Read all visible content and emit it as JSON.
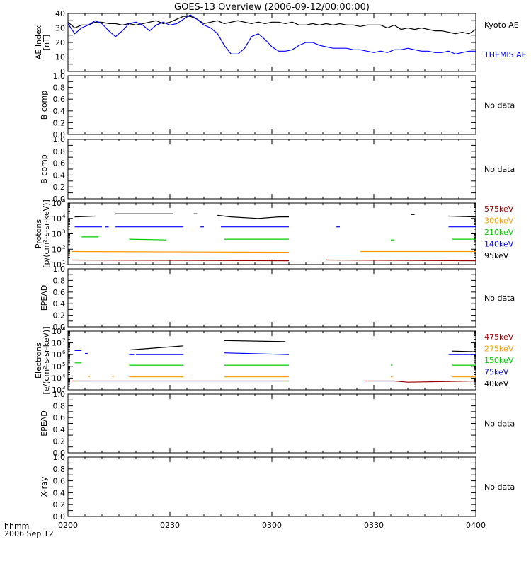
{
  "title": "GOES-13 Overview (2006-09-12/00:00:00)",
  "time_axis": {
    "corner_line1": "hhmm",
    "corner_line2": "2006 Sep 12",
    "ticks": [
      {
        "t": 0,
        "label": "0200"
      },
      {
        "t": 30,
        "label": "0230"
      },
      {
        "t": 60,
        "label": "0300"
      },
      {
        "t": 90,
        "label": "0330"
      },
      {
        "t": 120,
        "label": "0400"
      }
    ],
    "minor_step": 5,
    "range": [
      0,
      120
    ]
  },
  "colors": {
    "black": "#000000",
    "blue": "#0000ff",
    "green": "#00cc00",
    "orange": "#ff9900",
    "darkred": "#990000"
  },
  "chart_data": [
    {
      "type": "line",
      "id": "ae",
      "ylabel": [
        "AE Index",
        "[nT]"
      ],
      "ylim": [
        0,
        40
      ],
      "scale": "linear",
      "yticks": [
        0,
        5,
        10,
        15,
        20,
        25,
        30,
        35,
        40
      ],
      "yticklabels": [
        "0",
        "",
        "10",
        "",
        "20",
        "",
        "30",
        "",
        "40"
      ],
      "series": [
        {
          "name": "Kyoto AE",
          "color": "#000000",
          "x": [
            0,
            2,
            4,
            6,
            8,
            10,
            12,
            14,
            16,
            18,
            20,
            22,
            24,
            26,
            28,
            30,
            32,
            34,
            36,
            38,
            40,
            42,
            44,
            46,
            48,
            50,
            52,
            54,
            56,
            58,
            60,
            62,
            64,
            66,
            68,
            70,
            72,
            74,
            76,
            78,
            80,
            82,
            84,
            86,
            88,
            90,
            92,
            94,
            96,
            98,
            100,
            102,
            104,
            106,
            108,
            110,
            112,
            114,
            116,
            118,
            120
          ],
          "y": [
            34,
            30,
            32,
            32,
            34,
            34,
            33,
            33,
            32,
            33,
            32,
            33,
            34,
            35,
            33,
            34,
            36,
            38,
            38,
            36,
            33,
            34,
            35,
            33,
            34,
            35,
            34,
            33,
            34,
            33,
            34,
            34,
            33,
            34,
            32,
            32,
            33,
            32,
            33,
            32,
            33,
            32,
            32,
            31,
            32,
            32,
            32,
            30,
            32,
            29,
            30,
            29,
            30,
            29,
            28,
            28,
            27,
            26,
            27,
            26,
            29
          ]
        },
        {
          "name": "THEMIS AE",
          "color": "#0000ff",
          "x": [
            0,
            2,
            4,
            6,
            8,
            10,
            12,
            14,
            16,
            18,
            20,
            22,
            24,
            26,
            28,
            30,
            32,
            34,
            36,
            38,
            40,
            42,
            44,
            46,
            48,
            50,
            52,
            54,
            56,
            58,
            60,
            62,
            64,
            66,
            68,
            70,
            72,
            74,
            76,
            78,
            80,
            82,
            84,
            86,
            88,
            90,
            92,
            94,
            96,
            98,
            100,
            102,
            104,
            106,
            108,
            110,
            112,
            114,
            116,
            118,
            120
          ],
          "y": [
            33,
            26,
            30,
            32,
            35,
            33,
            28,
            24,
            28,
            33,
            34,
            32,
            28,
            32,
            34,
            32,
            33,
            36,
            39,
            36,
            32,
            30,
            26,
            18,
            12,
            12,
            16,
            24,
            26,
            22,
            17,
            14,
            14,
            15,
            18,
            20,
            20,
            18,
            17,
            16,
            16,
            16,
            15,
            15,
            14,
            13,
            14,
            13,
            15,
            15,
            16,
            15,
            14,
            14,
            13,
            13,
            14,
            12,
            13,
            14,
            14
          ]
        }
      ],
      "legend": [
        {
          "label": "Kyoto AE",
          "color": "#000000"
        },
        {
          "label": "THEMIS AE",
          "color": "#0000ff"
        }
      ]
    },
    {
      "type": "line",
      "id": "bcomp1",
      "ylabel": [
        "B comp"
      ],
      "ylim": [
        0,
        1
      ],
      "scale": "linear",
      "yticks": [
        0,
        0.1,
        0.2,
        0.3,
        0.4,
        0.5,
        0.6,
        0.7,
        0.8,
        0.9,
        1.0
      ],
      "yticklabels": [
        "0.0",
        "",
        "0.2",
        "",
        "0.4",
        "",
        "0.6",
        "",
        "0.8",
        "",
        "1.0"
      ],
      "series": [],
      "note": "No data"
    },
    {
      "type": "line",
      "id": "bcomp2",
      "ylabel": [
        "B comp"
      ],
      "ylim": [
        0,
        1
      ],
      "scale": "linear",
      "yticks": [
        0,
        0.1,
        0.2,
        0.3,
        0.4,
        0.5,
        0.6,
        0.7,
        0.8,
        0.9,
        1.0
      ],
      "yticklabels": [
        "0.0",
        "",
        "0.2",
        "",
        "0.4",
        "",
        "0.6",
        "",
        "0.8",
        "",
        "1.0"
      ],
      "series": [],
      "note": "No data"
    },
    {
      "type": "line",
      "id": "protons",
      "ylabel": [
        "Protons",
        "[p/(cm²-s-sr-keV)]"
      ],
      "ylim": [
        1,
        5
      ],
      "scale": "log",
      "ytick_exponents": [
        1,
        2,
        3,
        4,
        5
      ],
      "yticks": [
        1,
        2,
        3,
        4,
        5
      ],
      "yticklabels": [
        "10",
        "10",
        "10",
        "10",
        "10"
      ],
      "series": [
        {
          "name": "95keV",
          "color": "#000000",
          "segments": [
            [
              [
                2,
                4.1
              ],
              [
                8,
                4.15
              ]
            ],
            [
              [
                14,
                4.3
              ],
              [
                31,
                4.3
              ]
            ],
            [
              [
                37,
                4.3
              ],
              [
                38,
                4.3
              ]
            ],
            [
              [
                44,
                4.2
              ],
              [
                48,
                4.1
              ],
              [
                56,
                4.0
              ],
              [
                62,
                4.1
              ],
              [
                65,
                4.1
              ]
            ],
            [
              [
                101,
                4.25
              ],
              [
                102,
                4.25
              ]
            ],
            [
              [
                112,
                4.15
              ],
              [
                120,
                4.1
              ]
            ]
          ]
        },
        {
          "name": "140keV",
          "color": "#0000ff",
          "segments": [
            [
              [
                2,
                3.45
              ],
              [
                10,
                3.45
              ]
            ],
            [
              [
                11,
                3.45
              ],
              [
                12,
                3.45
              ]
            ],
            [
              [
                14,
                3.45
              ],
              [
                34,
                3.45
              ]
            ],
            [
              [
                39,
                3.45
              ],
              [
                40,
                3.45
              ]
            ],
            [
              [
                45,
                3.45
              ],
              [
                65,
                3.45
              ]
            ],
            [
              [
                79,
                3.45
              ],
              [
                80,
                3.45
              ]
            ],
            [
              [
                112,
                3.45
              ],
              [
                120,
                3.45
              ]
            ]
          ]
        },
        {
          "name": "210keV",
          "color": "#00cc00",
          "segments": [
            [
              [
                4,
                2.8
              ],
              [
                9,
                2.8
              ]
            ],
            [
              [
                18,
                2.65
              ],
              [
                29,
                2.6
              ]
            ],
            [
              [
                46,
                2.65
              ],
              [
                65,
                2.65
              ]
            ],
            [
              [
                95,
                2.6
              ],
              [
                96,
                2.6
              ]
            ],
            [
              [
                113,
                2.65
              ],
              [
                120,
                2.65
              ]
            ]
          ]
        },
        {
          "name": "300keV",
          "color": "#ff9900",
          "segments": [
            [
              [
                1,
                1.85
              ],
              [
                65,
                1.8
              ]
            ],
            [
              [
                86,
                1.85
              ],
              [
                120,
                1.85
              ]
            ]
          ]
        },
        {
          "name": "575keV",
          "color": "#990000",
          "segments": [
            [
              [
                1,
                1.3
              ],
              [
                65,
                1.25
              ]
            ],
            [
              [
                76,
                1.3
              ],
              [
                120,
                1.25
              ]
            ]
          ]
        }
      ],
      "legend": [
        {
          "label": "575keV",
          "color": "#990000"
        },
        {
          "label": "300keV",
          "color": "#ff9900"
        },
        {
          "label": "210keV",
          "color": "#00cc00"
        },
        {
          "label": "140keV",
          "color": "#0000ff"
        },
        {
          "label": "95keV",
          "color": "#000000"
        }
      ]
    },
    {
      "type": "line",
      "id": "epead1",
      "ylabel": [
        "EPEAD"
      ],
      "ylim": [
        0,
        1
      ],
      "scale": "linear",
      "yticks": [
        0,
        0.1,
        0.2,
        0.3,
        0.4,
        0.5,
        0.6,
        0.7,
        0.8,
        0.9,
        1.0
      ],
      "yticklabels": [
        "0.0",
        "",
        "0.2",
        "",
        "0.4",
        "",
        "0.6",
        "",
        "0.8",
        "",
        "1.0"
      ],
      "series": [],
      "note": "No data"
    },
    {
      "type": "line",
      "id": "electrons",
      "ylabel": [
        "Electrons",
        "[e/(cm²-s-sr-keV)]"
      ],
      "ylim": [
        3,
        8
      ],
      "scale": "log",
      "ytick_exponents": [
        3,
        4,
        5,
        6,
        7,
        8
      ],
      "yticks": [
        3,
        4,
        5,
        6,
        7,
        8
      ],
      "yticklabels": [
        "10",
        "10",
        "10",
        "10",
        "10",
        "10"
      ],
      "series": [
        {
          "name": "40keV",
          "color": "#000000",
          "segments": [
            [
              [
                18,
                6.4
              ],
              [
                34,
                6.75
              ]
            ],
            [
              [
                46,
                7.2
              ],
              [
                64,
                7.1
              ]
            ],
            [
              [
                113,
                6.3
              ],
              [
                120,
                6.25
              ]
            ]
          ]
        },
        {
          "name": "75keV",
          "color": "#0000ff",
          "segments": [
            [
              [
                2,
                6.35
              ],
              [
                4,
                6.35
              ]
            ],
            [
              [
                5,
                6.1
              ],
              [
                5.8,
                6.1
              ]
            ],
            [
              [
                18,
                6.0
              ],
              [
                19.5,
                6.0
              ]
            ],
            [
              [
                20,
                6.0
              ],
              [
                34,
                6.0
              ]
            ],
            [
              [
                46,
                6.15
              ],
              [
                65,
                6.0
              ]
            ],
            [
              [
                112,
                6.0
              ],
              [
                120,
                6.0
              ]
            ]
          ]
        },
        {
          "name": "150keV",
          "color": "#00cc00",
          "segments": [
            [
              [
                2,
                5.3
              ],
              [
                4,
                5.3
              ]
            ],
            [
              [
                18,
                5.1
              ],
              [
                34,
                5.1
              ]
            ],
            [
              [
                46,
                5.1
              ],
              [
                65,
                5.1
              ]
            ],
            [
              [
                95,
                5.1
              ],
              [
                95.5,
                5.1
              ]
            ],
            [
              [
                113,
                5.1
              ],
              [
                120,
                5.1
              ]
            ]
          ]
        },
        {
          "name": "275keV",
          "color": "#ff9900",
          "segments": [
            [
              [
                6,
                4.15
              ],
              [
                6.5,
                4.15
              ]
            ],
            [
              [
                13,
                4.15
              ],
              [
                13.5,
                4.15
              ]
            ],
            [
              [
                18,
                4.1
              ],
              [
                34,
                4.1
              ]
            ],
            [
              [
                46,
                4.1
              ],
              [
                65,
                4.1
              ]
            ],
            [
              [
                95,
                4.1
              ],
              [
                95.5,
                4.1
              ]
            ],
            [
              [
                113,
                4.1
              ],
              [
                120,
                4.1
              ]
            ]
          ]
        },
        {
          "name": "475keV",
          "color": "#990000",
          "segments": [
            [
              [
                1,
                3.75
              ],
              [
                65,
                3.75
              ]
            ],
            [
              [
                87,
                3.75
              ],
              [
                96,
                3.75
              ],
              [
                100,
                3.65
              ],
              [
                120,
                3.75
              ]
            ]
          ]
        }
      ],
      "legend": [
        {
          "label": "475keV",
          "color": "#990000"
        },
        {
          "label": "275keV",
          "color": "#ff9900"
        },
        {
          "label": "150keV",
          "color": "#00cc00"
        },
        {
          "label": "75keV",
          "color": "#0000ff"
        },
        {
          "label": "40keV",
          "color": "#000000"
        }
      ]
    },
    {
      "type": "line",
      "id": "epead2",
      "ylabel": [
        "EPEAD"
      ],
      "ylim": [
        0,
        1
      ],
      "scale": "linear",
      "yticks": [
        0,
        0.1,
        0.2,
        0.3,
        0.4,
        0.5,
        0.6,
        0.7,
        0.8,
        0.9,
        1.0
      ],
      "yticklabels": [
        "0.0",
        "",
        "0.2",
        "",
        "0.4",
        "",
        "0.6",
        "",
        "0.8",
        "",
        "1.0"
      ],
      "series": [],
      "note": "No data"
    },
    {
      "type": "line",
      "id": "xray",
      "ylabel": [
        "X-ray"
      ],
      "ylim": [
        0,
        1
      ],
      "scale": "linear",
      "yticks": [
        0,
        0.1,
        0.2,
        0.3,
        0.4,
        0.5,
        0.6,
        0.7,
        0.8,
        0.9,
        1.0
      ],
      "yticklabels": [
        "0.0",
        "",
        "0.2",
        "",
        "0.4",
        "",
        "0.6",
        "",
        "0.8",
        "",
        "1.0"
      ],
      "series": [],
      "note": "No data"
    }
  ]
}
